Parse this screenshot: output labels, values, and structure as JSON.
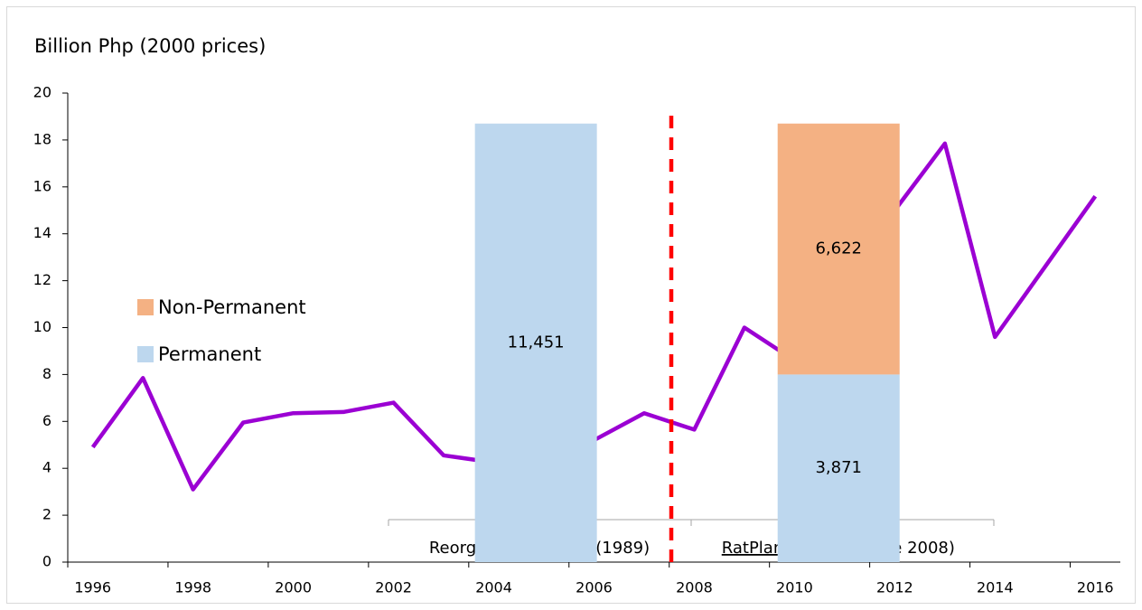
{
  "chart_data": {
    "type": "line",
    "y_label": "Billion Php (2000 prices)",
    "categories": [
      "1996",
      null,
      "1998",
      null,
      "2000",
      null,
      "2002",
      null,
      "2004",
      null,
      "2006",
      null,
      "2008",
      null,
      "2010",
      null,
      "2012",
      null,
      "2014",
      null,
      "2016"
    ],
    "series": [
      {
        "color": "#9b00d3",
        "values": [
          4.9,
          7.85,
          3.1,
          5.95,
          6.35,
          6.4,
          6.8,
          4.55,
          4.25,
          4.7,
          5.2,
          6.35,
          5.65,
          10.0,
          8.6,
          11.8,
          15.0,
          17.85,
          9.6,
          12.6,
          15.6
        ]
      }
    ],
    "ylim": [
      0,
      20
    ],
    "yticks": [
      0,
      2,
      4,
      6,
      8,
      10,
      12,
      14,
      16,
      18,
      20
    ],
    "bars": {
      "series": [
        {
          "name": "Permanent",
          "color": "#bdd7ee",
          "values": [
            18.7,
            8.0
          ],
          "segment_labels": [
            "11,451",
            "3,871"
          ]
        },
        {
          "name": "Non-Permanent",
          "color": "#f4b183",
          "values": [
            null,
            10.7
          ],
          "segment_labels": [
            null,
            "6,622"
          ]
        }
      ]
    },
    "periods": [
      "Reorganization Plan (1989)",
      "RatPlan",
      "(effective 2008)"
    ]
  }
}
